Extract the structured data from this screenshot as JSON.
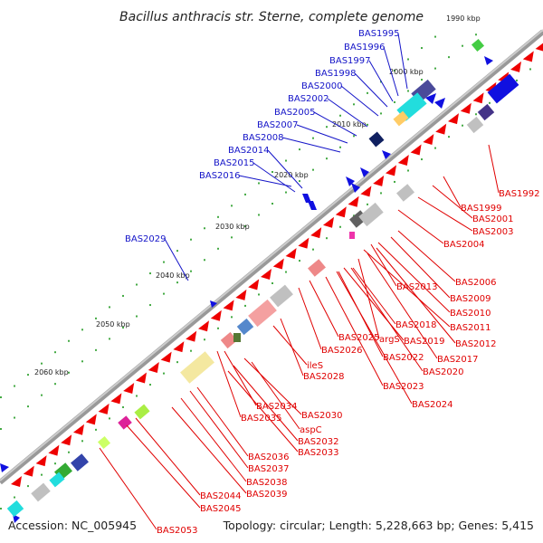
{
  "title": "Bacillus anthracis str. Sterne, complete genome",
  "footer": {
    "accession": "Accession: NC_005945",
    "summary": "Topology: circular; Length: 5,228,663 bp; Genes: 5,415"
  },
  "kbp_ticks": [
    "1990 kbp",
    "2000 kbp",
    "2010 kbp",
    "2020 kbp",
    "2030 kbp",
    "2040 kbp",
    "2050 kbp",
    "2060 kbp"
  ],
  "colors": {
    "forward_strand": "#1010e0",
    "reverse_strand": "#ee0000",
    "backbone": "#909090",
    "forward_label": "#1414c8",
    "reverse_label": "#e00000"
  },
  "forward_genes": [
    "BAS1995",
    "BAS1996",
    "BAS1997",
    "BAS1998",
    "BAS2000",
    "BAS2002",
    "BAS2005",
    "BAS2007",
    "BAS2008",
    "BAS2014",
    "BAS2015",
    "BAS2016",
    "BAS2029"
  ],
  "reverse_genes": [
    "BAS1992",
    "BAS1999",
    "BAS2001",
    "BAS2003",
    "BAS2004",
    "BAS2006",
    "BAS2013",
    "BAS2009",
    "BAS2010",
    "BAS2011",
    "BAS2018",
    "BAS2012",
    "BAS2025",
    "argS",
    "BAS2019",
    "BAS2017",
    "BAS2026",
    "BAS2022",
    "BAS2020",
    "ileS",
    "BAS2028",
    "BAS2023",
    "BAS2024",
    "BAS2034",
    "BAS2030",
    "BAS2035",
    "aspC",
    "BAS2032",
    "BAS2033",
    "BAS2036",
    "BAS2037",
    "BAS2038",
    "BAS2039",
    "BAS2044",
    "BAS2045",
    "BAS2053"
  ]
}
